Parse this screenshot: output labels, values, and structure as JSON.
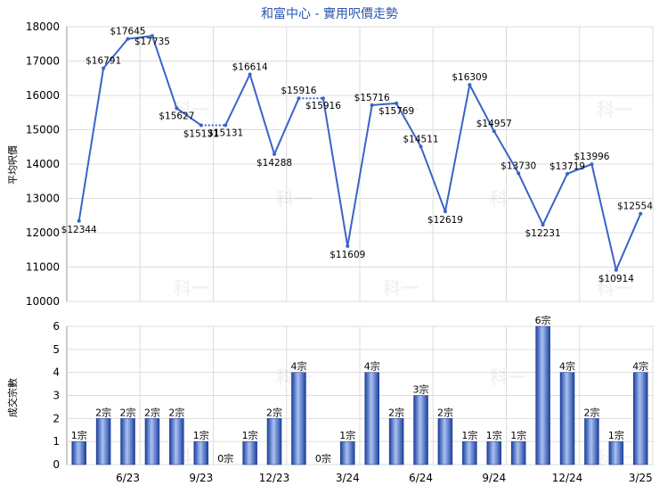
{
  "chart_data": [
    {
      "type": "line",
      "title": "和富中心 - 實用呎價走勢",
      "ylabel": "平均呎價",
      "ylim": [
        10000,
        18000
      ],
      "yticks": [
        10000,
        11000,
        12000,
        13000,
        14000,
        15000,
        16000,
        17000,
        18000
      ],
      "grid": true,
      "series": [
        {
          "values": [
            12344,
            16791,
            17645,
            17735,
            15627,
            15131,
            15131,
            16614,
            14288,
            15916,
            15916,
            11609,
            15716,
            15769,
            14511,
            12619,
            16309,
            14957,
            13730,
            12231,
            13719,
            13996,
            10914,
            12554
          ],
          "labels": [
            "$12344",
            "$16791",
            "$17645",
            "$17735",
            "$15627",
            "$15131",
            "$15131",
            "$16614",
            "$14288",
            "$15916",
            "$15916",
            "$11609",
            "$15716",
            "$15769",
            "$14511",
            "$12619",
            "$16309",
            "$14957",
            "$13730",
            "$12231",
            "$13719",
            "$13996",
            "$10914",
            "$12554"
          ],
          "color": "#3a63c8"
        }
      ]
    },
    {
      "type": "bar",
      "ylabel": "成交宗數",
      "ylim": [
        0,
        6
      ],
      "yticks": [
        0,
        1,
        2,
        3,
        4,
        5,
        6
      ],
      "grid": true,
      "categories": [
        "6/23",
        "9/23",
        "12/23",
        "3/24",
        "6/24",
        "9/24",
        "12/24",
        "3/25"
      ],
      "values": [
        1,
        2,
        2,
        2,
        2,
        1,
        0,
        1,
        2,
        4,
        0,
        1,
        4,
        2,
        3,
        2,
        1,
        1,
        1,
        6,
        4,
        2,
        1,
        4
      ],
      "labels": [
        "1宗",
        "2宗",
        "2宗",
        "2宗",
        "2宗",
        "1宗",
        "0宗",
        "1宗",
        "2宗",
        "4宗",
        "0宗",
        "1宗",
        "4宗",
        "2宗",
        "3宗",
        "2宗",
        "1宗",
        "1宗",
        "1宗",
        "6宗",
        "4宗",
        "2宗",
        "1宗",
        "4宗"
      ],
      "color": "#2f56b8"
    }
  ],
  "watermark": "科一"
}
